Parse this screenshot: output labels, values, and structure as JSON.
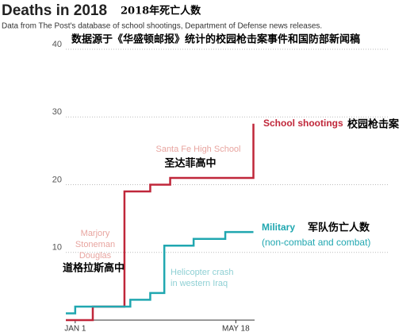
{
  "chart_data": {
    "type": "step-line",
    "title": "Deaths in 2018",
    "title_zh": "2018年死亡人数",
    "subtitle": "Data from The Post's database of school shootings, Department of Defense news releases.",
    "subtitle_zh": "数据源于《华盛顿邮报》统计的校园枪击案事件和国防部新闻稿",
    "xlim": [
      -8,
      153
    ],
    "xticks": [
      {
        "value": 0,
        "label": "JAN 1"
      },
      {
        "value": 137,
        "label": "MAY 18"
      }
    ],
    "ylim": [
      0,
      40
    ],
    "yticks": [
      10,
      20,
      30,
      40
    ],
    "grid": true,
    "series": [
      {
        "name": "School shootings",
        "color": "#c0273a",
        "x": [
          -8,
          15,
          42,
          64,
          81,
          152
        ],
        "values": [
          0,
          2,
          19,
          20,
          21,
          29
        ]
      },
      {
        "name": "Military",
        "color": "#20a7b0",
        "x": [
          -8,
          0,
          47,
          64,
          76,
          101,
          128,
          152
        ],
        "values": [
          1,
          2,
          3,
          4,
          11,
          12,
          13,
          13
        ]
      }
    ],
    "annotations": [
      "Santa Fe High School",
      "圣达菲高中",
      "Marjory",
      "Stoneman",
      "Douglas",
      "道格拉斯高中",
      "Helicopter crash",
      "in western Iraq",
      "校园枪击案",
      "(non-combat and combat)",
      "军队伤亡人数"
    ]
  }
}
